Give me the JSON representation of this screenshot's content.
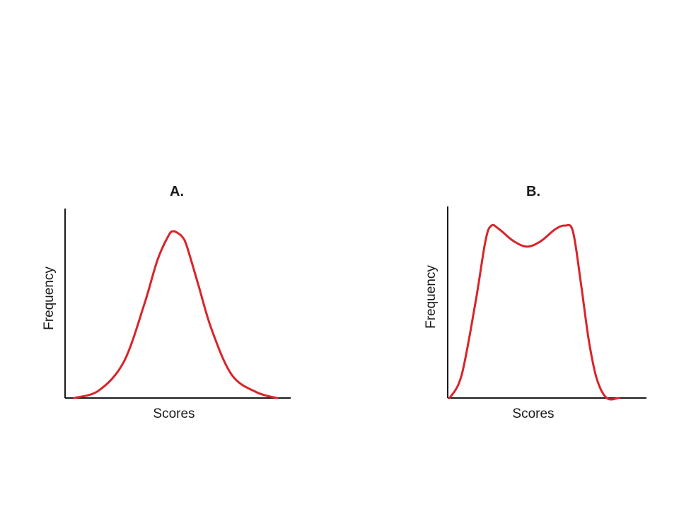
{
  "colors": {
    "curve": "#d9232a",
    "axis": "#1a1a1a",
    "background": "#ffffff"
  },
  "chart_data": [
    {
      "type": "line",
      "title": "A.",
      "xlabel": "Scores",
      "ylabel": "Frequency",
      "ticks": "none",
      "xlim": [
        0,
        1
      ],
      "ylim": [
        0,
        1
      ],
      "series": [
        {
          "x": [
            0.04,
            0.15,
            0.26,
            0.35,
            0.41,
            0.46,
            0.48,
            0.5,
            0.52,
            0.54,
            0.59,
            0.65,
            0.74,
            0.85,
            0.94
          ],
          "y": [
            0.0,
            0.04,
            0.19,
            0.49,
            0.73,
            0.86,
            0.88,
            0.87,
            0.85,
            0.8,
            0.6,
            0.36,
            0.12,
            0.03,
            0.0
          ]
        }
      ]
    },
    {
      "type": "line",
      "title": "B.",
      "xlabel": "Scores",
      "ylabel": "Frequency",
      "ticks": "none",
      "xlim": [
        0,
        1
      ],
      "ylim": [
        0,
        1
      ],
      "series": [
        {
          "x": [
            0.01,
            0.07,
            0.14,
            0.19,
            0.22,
            0.26,
            0.33,
            0.4,
            0.47,
            0.54,
            0.59,
            0.63,
            0.67,
            0.71,
            0.75,
            0.8,
            0.86
          ],
          "y": [
            0.0,
            0.12,
            0.5,
            0.82,
            0.9,
            0.88,
            0.82,
            0.79,
            0.82,
            0.88,
            0.9,
            0.87,
            0.6,
            0.3,
            0.1,
            0.0,
            0.0
          ]
        }
      ]
    }
  ]
}
